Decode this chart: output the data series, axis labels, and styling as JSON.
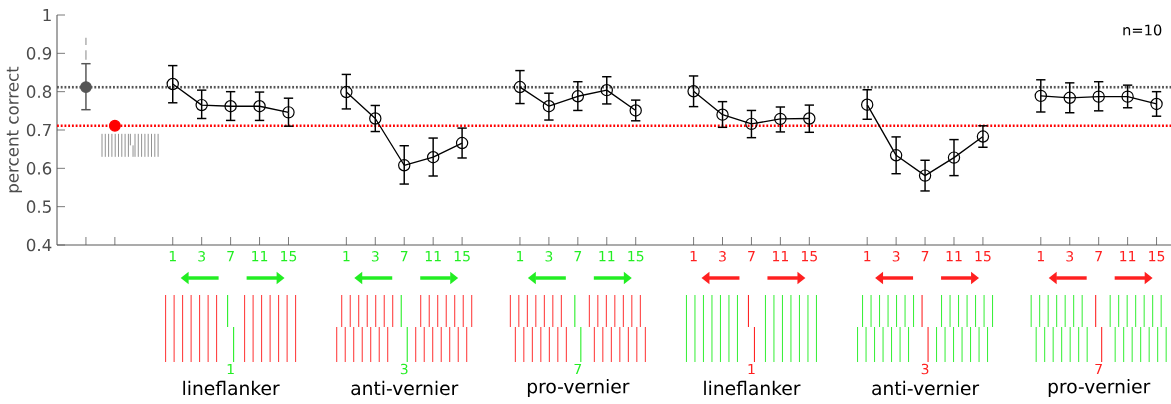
{
  "chart_data": {
    "type": "line",
    "ylabel": "percent correct",
    "categories": [
      null,
      null,
      null,
      "1",
      "3",
      "7",
      "11",
      "15",
      null,
      "1",
      "3",
      "7",
      "11",
      "15",
      null,
      "1",
      "3",
      "7",
      "11",
      "15",
      null,
      "1",
      "3",
      "7",
      "11",
      "15",
      null,
      "1",
      "3",
      "7",
      "11",
      "15",
      null,
      "1",
      "3",
      "7",
      "11",
      "15"
    ],
    "ylim": [
      0.4,
      1
    ],
    "yticks": [
      0.4,
      0.5,
      0.6,
      0.7,
      0.8,
      0.9,
      1
    ],
    "series": [
      {
        "type": "scatter",
        "color": "#555555",
        "marker": "circle",
        "values": [
          0.812,
          null,
          null,
          null,
          null,
          null,
          null,
          null,
          null,
          null,
          null,
          null,
          null,
          null,
          null,
          null,
          null,
          null,
          null,
          null,
          null,
          null,
          null,
          null,
          null,
          null,
          null,
          null,
          null,
          null,
          null,
          null,
          null,
          null,
          null,
          null,
          null,
          null
        ],
        "errors": [
          [
            0.753,
            0.873
          ],
          null,
          null,
          null,
          null,
          null,
          null,
          null,
          null,
          null,
          null,
          null,
          null,
          null,
          null,
          null,
          null,
          null,
          null,
          null,
          null,
          null,
          null,
          null,
          null,
          null,
          null,
          null,
          null,
          null,
          null,
          null,
          null,
          null,
          null,
          null,
          null,
          null
        ]
      },
      {
        "type": "scatter",
        "color": "#ff0000",
        "marker": "circle",
        "values": [
          null,
          0.711,
          null,
          null,
          null,
          null,
          null,
          null,
          null,
          null,
          null,
          null,
          null,
          null,
          null,
          null,
          null,
          null,
          null,
          null,
          null,
          null,
          null,
          null,
          null,
          null,
          null,
          null,
          null,
          null,
          null,
          null,
          null,
          null,
          null,
          null,
          null,
          null
        ]
      },
      {
        "color": "#000000",
        "marker": "circle",
        "values": [
          null,
          null,
          null,
          0.82,
          0.765,
          0.762,
          0.762,
          0.746,
          null,
          null,
          null,
          null,
          null,
          null,
          null,
          null,
          null,
          null,
          null,
          null,
          null,
          null,
          null,
          null,
          null,
          null,
          null,
          null,
          null,
          null,
          null,
          null,
          null,
          null,
          null,
          null,
          null,
          null
        ],
        "errors": [
          null,
          null,
          null,
          [
            0.771,
            0.868
          ],
          [
            0.73,
            0.804
          ],
          [
            0.725,
            0.8
          ],
          [
            0.725,
            0.799
          ],
          [
            0.71,
            0.783
          ],
          null,
          null,
          null,
          null,
          null,
          null,
          null,
          null,
          null,
          null,
          null,
          null,
          null,
          null,
          null,
          null,
          null,
          null,
          null,
          null,
          null,
          null,
          null,
          null,
          null,
          null,
          null,
          null,
          null,
          null
        ]
      },
      {
        "color": "#000000",
        "marker": "circle",
        "values": [
          null,
          null,
          null,
          null,
          null,
          null,
          null,
          null,
          null,
          0.799,
          0.73,
          0.608,
          0.629,
          0.666,
          null,
          null,
          null,
          null,
          null,
          null,
          null,
          null,
          null,
          null,
          null,
          null,
          null,
          null,
          null,
          null,
          null,
          null,
          null,
          null,
          null,
          null,
          null,
          null
        ],
        "errors": [
          null,
          null,
          null,
          null,
          null,
          null,
          null,
          null,
          null,
          [
            0.755,
            0.845
          ],
          [
            0.696,
            0.764
          ],
          [
            0.559,
            0.659
          ],
          [
            0.58,
            0.679
          ],
          [
            0.627,
            0.705
          ],
          null,
          null,
          null,
          null,
          null,
          null,
          null,
          null,
          null,
          null,
          null,
          null,
          null,
          null,
          null,
          null,
          null,
          null,
          null,
          null,
          null,
          null,
          null,
          null
        ]
      },
      {
        "color": "#000000",
        "marker": "circle",
        "values": [
          null,
          null,
          null,
          null,
          null,
          null,
          null,
          null,
          null,
          null,
          null,
          null,
          null,
          null,
          null,
          0.812,
          0.762,
          0.788,
          0.804,
          0.751,
          null,
          null,
          null,
          null,
          null,
          null,
          null,
          null,
          null,
          null,
          null,
          null,
          null,
          null,
          null,
          null,
          null,
          null
        ],
        "errors": [
          null,
          null,
          null,
          null,
          null,
          null,
          null,
          null,
          null,
          null,
          null,
          null,
          null,
          null,
          null,
          [
            0.769,
            0.855
          ],
          [
            0.726,
            0.796
          ],
          [
            0.751,
            0.826
          ],
          [
            0.768,
            0.839
          ],
          [
            0.724,
            0.778
          ],
          null,
          null,
          null,
          null,
          null,
          null,
          null,
          null,
          null,
          null,
          null,
          null,
          null,
          null,
          null,
          null,
          null,
          null
        ]
      },
      {
        "color": "#000000",
        "marker": "circle",
        "values": [
          null,
          null,
          null,
          null,
          null,
          null,
          null,
          null,
          null,
          null,
          null,
          null,
          null,
          null,
          null,
          null,
          null,
          null,
          null,
          null,
          null,
          0.801,
          0.74,
          0.716,
          0.729,
          0.73,
          null,
          null,
          null,
          null,
          null,
          null,
          null,
          null,
          null,
          null,
          null,
          null
        ],
        "errors": [
          null,
          null,
          null,
          null,
          null,
          null,
          null,
          null,
          null,
          null,
          null,
          null,
          null,
          null,
          null,
          null,
          null,
          null,
          null,
          null,
          null,
          [
            0.761,
            0.841
          ],
          [
            0.707,
            0.774
          ],
          [
            0.68,
            0.751
          ],
          [
            0.695,
            0.76
          ],
          [
            0.694,
            0.765
          ],
          null,
          null,
          null,
          null,
          null,
          null,
          null,
          null,
          null,
          null,
          null,
          null
        ]
      },
      {
        "color": "#000000",
        "marker": "circle",
        "values": [
          null,
          null,
          null,
          null,
          null,
          null,
          null,
          null,
          null,
          null,
          null,
          null,
          null,
          null,
          null,
          null,
          null,
          null,
          null,
          null,
          null,
          null,
          null,
          null,
          null,
          null,
          null,
          0.766,
          0.634,
          0.581,
          0.628,
          0.683,
          null,
          null,
          null,
          null,
          null,
          null
        ],
        "errors": [
          null,
          null,
          null,
          null,
          null,
          null,
          null,
          null,
          null,
          null,
          null,
          null,
          null,
          null,
          null,
          null,
          null,
          null,
          null,
          null,
          null,
          null,
          null,
          null,
          null,
          null,
          null,
          [
            0.728,
            0.805
          ],
          [
            0.586,
            0.682
          ],
          [
            0.541,
            0.621
          ],
          [
            0.581,
            0.675
          ],
          [
            0.655,
            0.711
          ],
          null,
          null,
          null,
          null,
          null,
          null
        ]
      },
      {
        "color": "#000000",
        "marker": "circle",
        "values": [
          null,
          null,
          null,
          null,
          null,
          null,
          null,
          null,
          null,
          null,
          null,
          null,
          null,
          null,
          null,
          null,
          null,
          null,
          null,
          null,
          null,
          null,
          null,
          null,
          null,
          null,
          null,
          null,
          null,
          null,
          null,
          null,
          null,
          0.789,
          0.784,
          0.787,
          0.787,
          0.768
        ],
        "errors": [
          null,
          null,
          null,
          null,
          null,
          null,
          null,
          null,
          null,
          null,
          null,
          null,
          null,
          null,
          null,
          null,
          null,
          null,
          null,
          null,
          null,
          null,
          null,
          null,
          null,
          null,
          null,
          null,
          null,
          null,
          null,
          null,
          null,
          [
            0.747,
            0.831
          ],
          [
            0.745,
            0.823
          ],
          [
            0.75,
            0.826
          ],
          [
            0.758,
            0.817
          ],
          [
            0.736,
            0.8
          ]
        ]
      }
    ],
    "ref_lines": [
      {
        "axis": "y",
        "value": 0.812,
        "color": "#555555",
        "line_style": "dotted"
      },
      {
        "axis": "y",
        "value": 0.711,
        "color": "#ff0000",
        "line_style": "dotted"
      }
    ],
    "annotations": [
      "n=10",
      "1",
      "lineflanker",
      "3",
      "anti-vernier",
      "7",
      "pro-vernier",
      "1",
      "lineflanker",
      "3",
      "anti-vernier",
      "7",
      "pro-vernier"
    ]
  }
}
